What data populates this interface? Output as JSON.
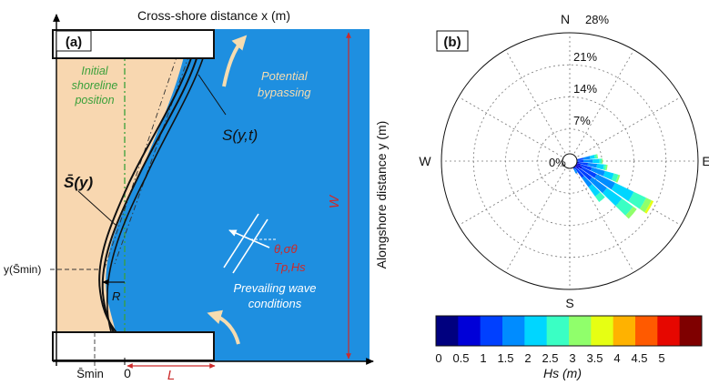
{
  "panel_a": {
    "label": "(a)",
    "x_axis_title": "Cross-shore distance x (m)",
    "y_axis_title": "Alongshore distance y (m)",
    "initial_shoreline_label_1": "Initial",
    "initial_shoreline_label_2": "shoreline",
    "initial_shoreline_label_3": "position",
    "bypass_label_1": "Potential",
    "bypass_label_2": "bypassing",
    "shoreline_label": "S(y,t)",
    "mean_shoreline_label": "S̄(y)",
    "y_smin_label": "y(S̄min)",
    "r_label": "R",
    "w_label": "W",
    "wave_params_1": "θ,σθ",
    "wave_params_2": "Tp,Hs",
    "prevailing_label_1": "Prevailing wave",
    "prevailing_label_2": "conditions",
    "smin_label": "S̄min",
    "zero_label": "0",
    "l_label": "L",
    "colors": {
      "sea": "#1e8fe0",
      "sand": "#f8d7b0",
      "dimension_red": "#cc2a2a",
      "arrow_beige": "#f5dcb0",
      "initial_line_green": "#3aa03a"
    }
  },
  "panel_b": {
    "label": "(b)",
    "north": "N",
    "south": "S",
    "east": "E",
    "west": "W",
    "ring_labels": [
      "0%",
      "7%",
      "14%",
      "21%",
      "28%"
    ],
    "rose_data": {
      "type": "wind-rose",
      "variable": "Hs",
      "units": "m",
      "radial_max_percent": 28,
      "radial_ticks_percent": [
        7,
        14,
        21,
        28
      ],
      "bin_edges_m": [
        0,
        0.5,
        1,
        1.5,
        2,
        2.5,
        3,
        3.5,
        4,
        4.5,
        5
      ],
      "direction_bin_width_deg": 10,
      "sectors": [
        {
          "direction_deg": 80,
          "cumulative_percent": [
            1.5,
            3.0,
            4.5,
            5.5,
            6.0,
            6.2
          ]
        },
        {
          "direction_deg": 90,
          "cumulative_percent": [
            1.5,
            3.0,
            5.0,
            6.5,
            7.0,
            7.2
          ]
        },
        {
          "direction_deg": 100,
          "cumulative_percent": [
            2.0,
            4.0,
            6.0,
            7.5,
            8.0,
            8.3
          ]
        },
        {
          "direction_deg": 110,
          "cumulative_percent": [
            2.5,
            5.0,
            8.0,
            10.0,
            11.0,
            11.4
          ]
        },
        {
          "direction_deg": 120,
          "cumulative_percent": [
            3.0,
            6.5,
            11.0,
            15.5,
            18.5,
            19.8,
            20.3
          ]
        },
        {
          "direction_deg": 130,
          "cumulative_percent": [
            2.5,
            6.0,
            10.0,
            14.0,
            17.0,
            18.0
          ]
        },
        {
          "direction_deg": 140,
          "cumulative_percent": [
            2.0,
            4.5,
            7.0,
            9.5,
            11.0
          ]
        },
        {
          "direction_deg": 150,
          "cumulative_percent": [
            1.0,
            2.0,
            3.0
          ]
        }
      ]
    }
  },
  "colorbar": {
    "tick_labels": [
      "0",
      "0.5",
      "1",
      "1.5",
      "2",
      "2.5",
      "3",
      "3.5",
      "4",
      "4.5",
      "5"
    ],
    "title": "Hs (m)",
    "colors": [
      "#00007f",
      "#0000d8",
      "#0040ff",
      "#008cff",
      "#00d6ff",
      "#3affc4",
      "#90ff6b",
      "#e6ff13",
      "#ffb200",
      "#ff5a00",
      "#e60700",
      "#7f0000"
    ]
  }
}
